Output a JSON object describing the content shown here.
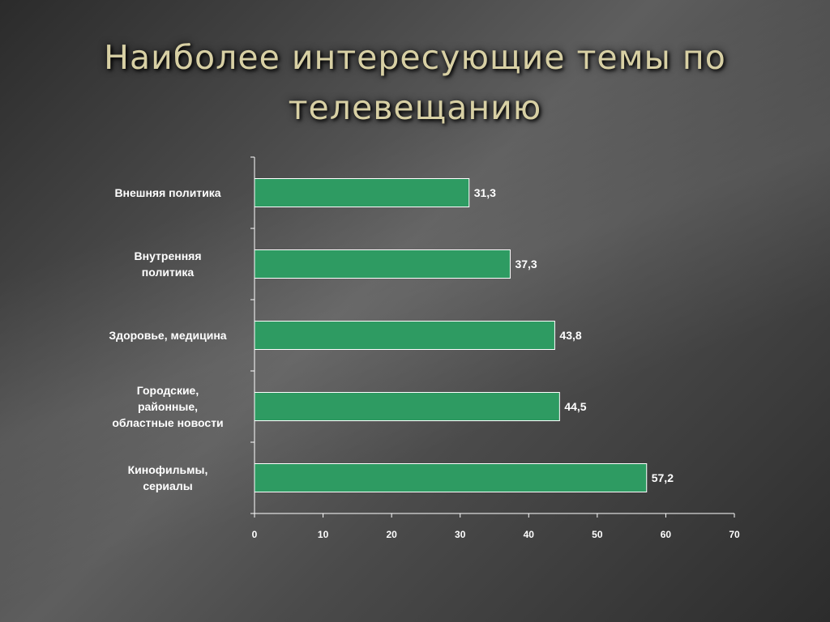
{
  "slide": {
    "title": "Наиболее интересующие темы по телевещанию"
  },
  "colors": {
    "bar_fill": "#2e9b62",
    "bar_stroke": "#ffffff",
    "axis": "#ffffff",
    "text": "#ffffff",
    "title": "#d8d0a4"
  },
  "chart_data": {
    "type": "bar",
    "orientation": "horizontal",
    "categories": [
      [
        "Внешняя политика"
      ],
      [
        "Внутренняя",
        "политика"
      ],
      [
        "Здоровье, медицина"
      ],
      [
        "Городские,",
        "районные,",
        "областные новости"
      ],
      [
        "Кинофильмы,",
        "сериалы"
      ]
    ],
    "values": [
      31.3,
      37.3,
      43.8,
      44.5,
      57.2
    ],
    "value_labels": [
      "31,3",
      "37,3",
      "43,8",
      "44,5",
      "57,2"
    ],
    "xlim": [
      0,
      70
    ],
    "xticks": [
      0,
      10,
      20,
      30,
      40,
      50,
      60,
      70
    ],
    "grid": false,
    "legend": "none"
  }
}
